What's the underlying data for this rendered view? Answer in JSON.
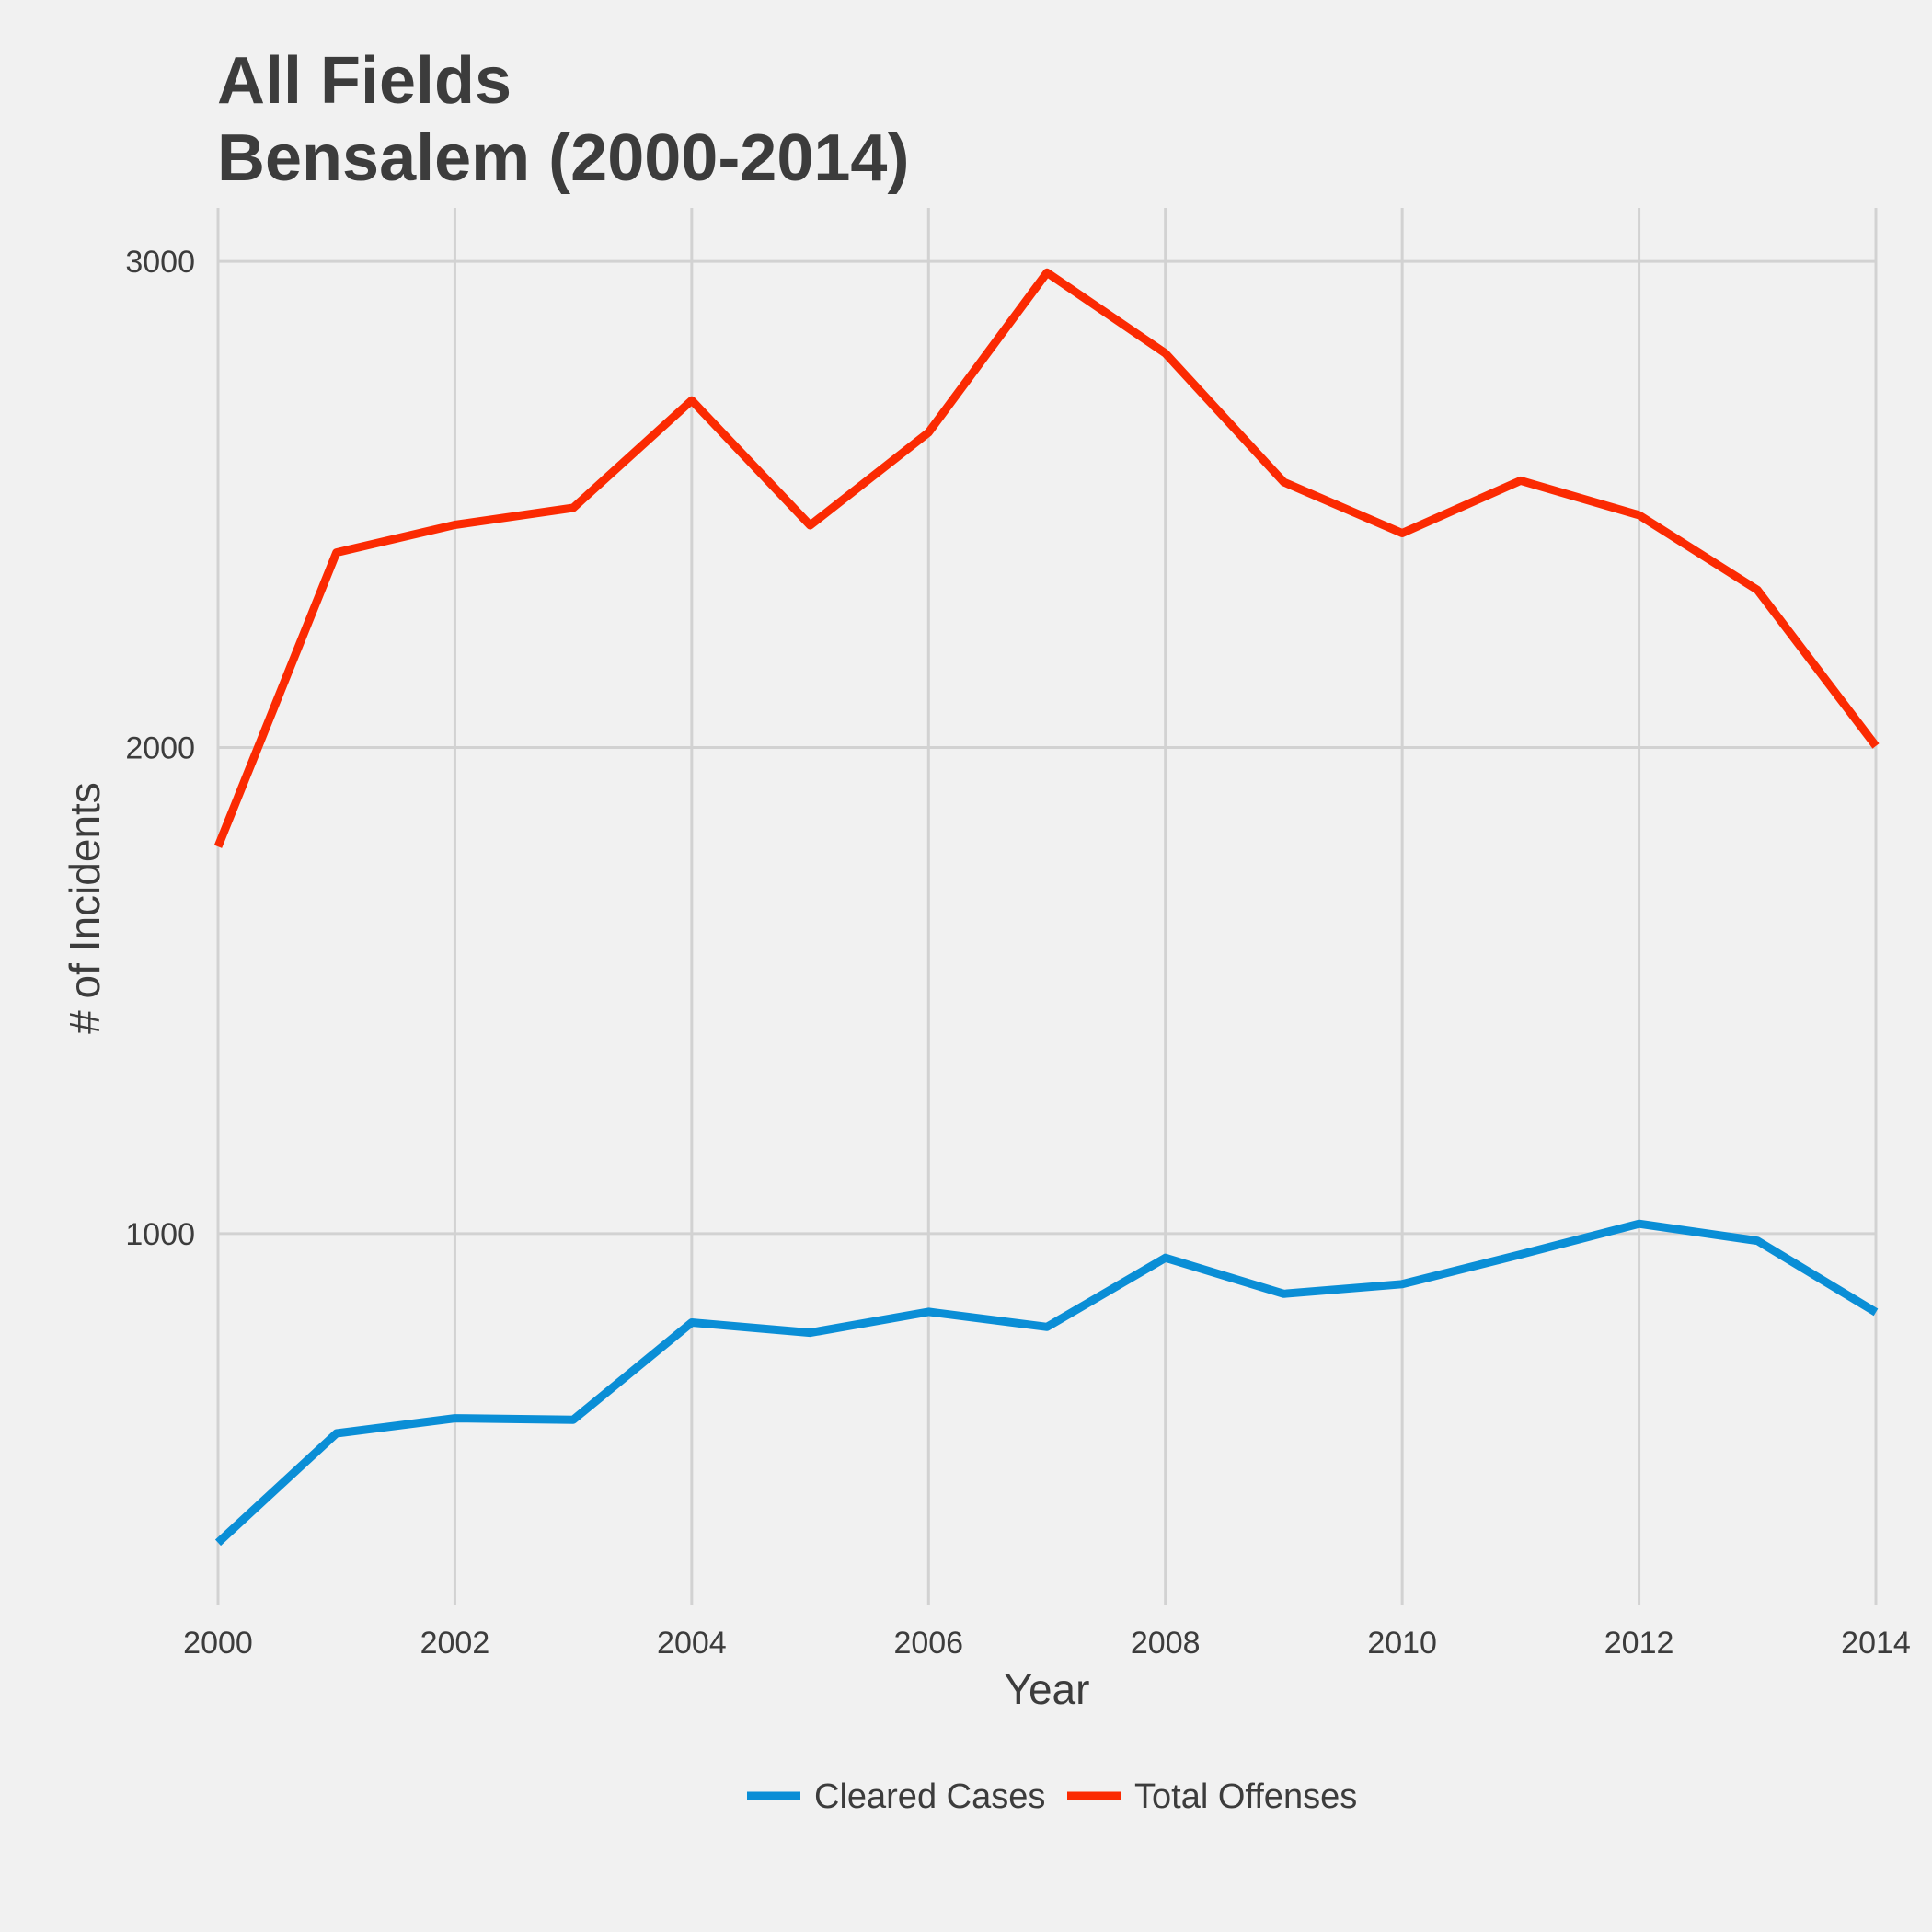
{
  "chart_data": {
    "type": "line",
    "title_line1": "All Fields",
    "title_line2": "Bensalem (2000-2014)",
    "xlabel": "Year",
    "ylabel": "# of Incidents",
    "x": [
      2000,
      2001,
      2002,
      2003,
      2004,
      2005,
      2006,
      2007,
      2008,
      2009,
      2010,
      2011,
      2012,
      2013,
      2014
    ],
    "x_ticks": [
      2000,
      2002,
      2004,
      2006,
      2008,
      2010,
      2012,
      2014
    ],
    "y_ticks": [
      1000,
      2000,
      3000
    ],
    "xlim": [
      2000,
      2014
    ],
    "ylim": [
      235,
      3110
    ],
    "grid": true,
    "legend_position": "bottom",
    "series": [
      {
        "name": "Cleared Cases",
        "color": "#0a8ed6",
        "values": [
          364,
          589,
          620,
          617,
          817,
          796,
          839,
          808,
          950,
          876,
          896,
          957,
          1020,
          985,
          838
        ]
      },
      {
        "name": "Total Offenses",
        "color": "#fb2a02",
        "values": [
          1796,
          2401,
          2458,
          2493,
          2714,
          2457,
          2648,
          2977,
          2811,
          2546,
          2441,
          2549,
          2478,
          2324,
          2003
        ]
      }
    ],
    "colors": {
      "background": "#f1f1f1",
      "grid": "#d2d2d2",
      "text": "#3c3c3c"
    }
  }
}
